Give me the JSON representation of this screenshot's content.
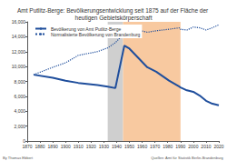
{
  "chart_data": {
    "type": "line",
    "title": "Amt Putlitz-Berge: Bevölkerungsentwicklung seit 1875 auf der Fläche der heutigen Gebietskörperschaft",
    "x": [
      1875,
      1890,
      1900,
      1910,
      1925,
      1933,
      1939,
      1946,
      1950,
      1964,
      1971,
      1981,
      1985,
      1989,
      1990,
      1995,
      2000,
      2005,
      2010,
      2015,
      2020
    ],
    "series": [
      {
        "name": "Bevölkerung von Amt Putlitz-Berge",
        "color": "#1f4e9c",
        "line_style": "solid",
        "marker": "none",
        "values": [
          8900,
          8500,
          8100,
          7800,
          7500,
          7300,
          7100,
          12800,
          12400,
          9900,
          9300,
          8100,
          7700,
          7300,
          7200,
          6800,
          6600,
          6100,
          5400,
          5000,
          4800
        ]
      },
      {
        "name": "Normalisierte Bevölkerung von Brandenburg",
        "color": "#1f4e9c",
        "line_style": "dotted",
        "marker": "none",
        "values": [
          8900,
          9900,
          10500,
          11500,
          12000,
          12500,
          13200,
          14500,
          15200,
          14600,
          14800,
          15000,
          15100,
          15200,
          15000,
          14900,
          15300,
          15200,
          14900,
          15200,
          15600
        ]
      }
    ],
    "shaded_periods": [
      {
        "from": 1933,
        "to": 1945,
        "color": "#cfcfcf"
      },
      {
        "from": 1945,
        "to": 1990,
        "color": "#f8c9a0"
      }
    ],
    "xlim": [
      1870,
      2020
    ],
    "xticks": [
      1870,
      1880,
      1890,
      1900,
      1910,
      1920,
      1930,
      1940,
      1950,
      1960,
      1970,
      1980,
      1990,
      2000,
      2010,
      2020
    ],
    "ylim": [
      0,
      16000
    ],
    "yticks": [
      0,
      {
        "value": 2000,
        "label": "2,000"
      },
      {
        "value": 4000,
        "label": "4,000"
      },
      {
        "value": 6000,
        "label": "6,000"
      },
      {
        "value": 8000,
        "label": "8,000"
      },
      {
        "value": 10000,
        "label": "10,000"
      },
      {
        "value": 12000,
        "label": "12,000"
      },
      {
        "value": 14000,
        "label": "14,000"
      },
      {
        "value": 16000,
        "label": "16,000"
      }
    ],
    "grid": false,
    "legend": "top-left",
    "footer": {
      "author": "By Thomas Ebbert",
      "source": "Quellen: Amt für Statistik Berlin-Brandenburg"
    }
  }
}
